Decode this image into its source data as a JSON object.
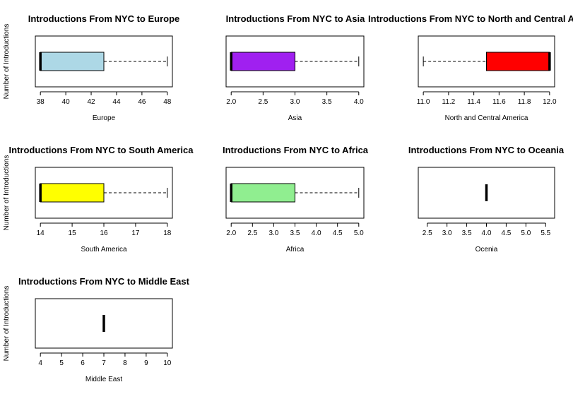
{
  "chart_data": [
    {
      "type": "boxplot",
      "title": "Introductions From NYC to Europe",
      "xlabel": "Europe",
      "ylabel": "Number of Introductions",
      "xlim": [
        38,
        48
      ],
      "ticks": [
        "38",
        "40",
        "42",
        "44",
        "46",
        "48"
      ],
      "stats": {
        "min": 38,
        "q1": 38,
        "median": 38,
        "q3": 43,
        "max": 48
      },
      "fill": "#add8e6"
    },
    {
      "type": "boxplot",
      "title": "Introductions From NYC to Asia",
      "xlabel": "Asia",
      "ylabel": "",
      "xlim": [
        2,
        4
      ],
      "ticks": [
        "2.0",
        "2.5",
        "3.0",
        "3.5",
        "4.0"
      ],
      "stats": {
        "min": 2,
        "q1": 2,
        "median": 2,
        "q3": 3,
        "max": 4
      },
      "fill": "#a020f0"
    },
    {
      "type": "boxplot",
      "title": "Introductions From NYC to North and Central America",
      "xlabel": "North and Central America",
      "ylabel": "",
      "xlim": [
        11,
        12
      ],
      "ticks": [
        "11.0",
        "11.2",
        "11.4",
        "11.6",
        "11.8",
        "12.0"
      ],
      "stats": {
        "min": 11,
        "q1": 11.5,
        "median": 12,
        "q3": 12,
        "max": 12
      },
      "fill": "#ff0000"
    },
    {
      "type": "boxplot",
      "title": "Introductions From NYC to South America",
      "xlabel": "South America",
      "ylabel": "Number of Introductions",
      "xlim": [
        14,
        18
      ],
      "ticks": [
        "14",
        "15",
        "16",
        "17",
        "18"
      ],
      "stats": {
        "min": 14,
        "q1": 14,
        "median": 14,
        "q3": 16,
        "max": 18
      },
      "fill": "#ffff00"
    },
    {
      "type": "boxplot",
      "title": "Introductions From NYC to Africa",
      "xlabel": "Africa",
      "ylabel": "",
      "xlim": [
        2,
        5
      ],
      "ticks": [
        "2.0",
        "2.5",
        "3.0",
        "3.5",
        "4.0",
        "4.5",
        "5.0"
      ],
      "stats": {
        "min": 2,
        "q1": 2,
        "median": 2,
        "q3": 3.5,
        "max": 5
      },
      "fill": "#90ee90"
    },
    {
      "type": "boxplot",
      "title": "Introductions From NYC to Oceania",
      "xlabel": "Ocenia",
      "ylabel": "",
      "xlim": [
        2.4,
        5.6
      ],
      "ticks": [
        "2.5",
        "3.0",
        "3.5",
        "4.0",
        "4.5",
        "5.0",
        "5.5"
      ],
      "stats": {
        "min": 4,
        "q1": 4,
        "median": 4,
        "q3": 4,
        "max": 4
      },
      "fill": "#ffffff"
    },
    {
      "type": "boxplot",
      "title": "Introductions From NYC to Middle East",
      "xlabel": "Middle East",
      "ylabel": "Number of Introductions",
      "xlim": [
        4,
        10
      ],
      "ticks": [
        "4",
        "5",
        "6",
        "7",
        "8",
        "9",
        "10"
      ],
      "stats": {
        "min": 7,
        "q1": 7,
        "median": 7,
        "q3": 7,
        "max": 7
      },
      "fill": "#ffffff"
    }
  ]
}
